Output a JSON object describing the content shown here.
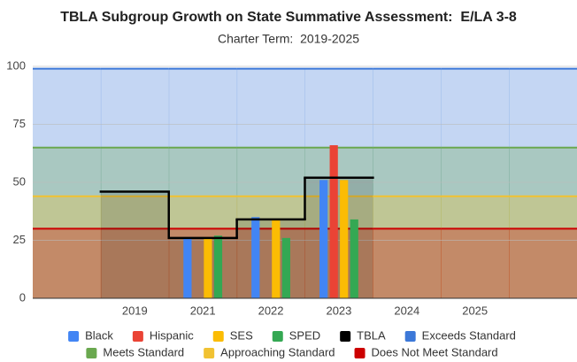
{
  "chart_data": {
    "type": "combo",
    "title": "TBLA Subgroup Growth on State Summative Assessment:  E/LA 3-8",
    "subtitle": "Charter Term:  2019-2025",
    "categories": [
      null,
      "2019",
      "2021",
      "2022",
      "2023",
      "2024",
      "2025",
      null
    ],
    "ylim": [
      0,
      100
    ],
    "yticks": [
      0,
      25,
      50,
      75,
      100
    ],
    "grid": true,
    "series": [
      {
        "name": "Black",
        "type": "bar",
        "color": "#4285f4",
        "values": [
          null,
          null,
          26,
          35,
          51,
          null,
          null,
          null
        ]
      },
      {
        "name": "Hispanic",
        "type": "bar",
        "color": "#ea4335",
        "values": [
          null,
          null,
          null,
          null,
          66,
          null,
          null,
          null
        ]
      },
      {
        "name": "SES",
        "type": "bar",
        "color": "#fbbc04",
        "values": [
          null,
          null,
          26,
          34,
          51,
          null,
          null,
          null
        ]
      },
      {
        "name": "SPED",
        "type": "bar",
        "color": "#34a853",
        "values": [
          null,
          null,
          27,
          26,
          34,
          null,
          null,
          null
        ]
      },
      {
        "name": "TBLA",
        "type": "steppedArea",
        "color": "#000000",
        "values": [
          null,
          46,
          26,
          34,
          52,
          null,
          null,
          null
        ]
      },
      {
        "name": "Exceeds Standard",
        "type": "band",
        "color": "#3c78d8",
        "values": [
          99,
          99,
          99,
          99,
          99,
          99,
          99,
          99
        ]
      },
      {
        "name": "Meets Standard",
        "type": "band",
        "color": "#6aa84f",
        "values": [
          65,
          65,
          65,
          65,
          65,
          65,
          65,
          65
        ]
      },
      {
        "name": "Approaching Standard",
        "type": "band",
        "color": "#f1c232",
        "values": [
          44,
          44,
          44,
          44,
          44,
          44,
          44,
          44
        ]
      },
      {
        "name": "Does Not Meet Standard",
        "type": "band",
        "color": "#cc0000",
        "values": [
          30,
          30,
          30,
          30,
          30,
          30,
          30,
          30
        ]
      }
    ]
  }
}
